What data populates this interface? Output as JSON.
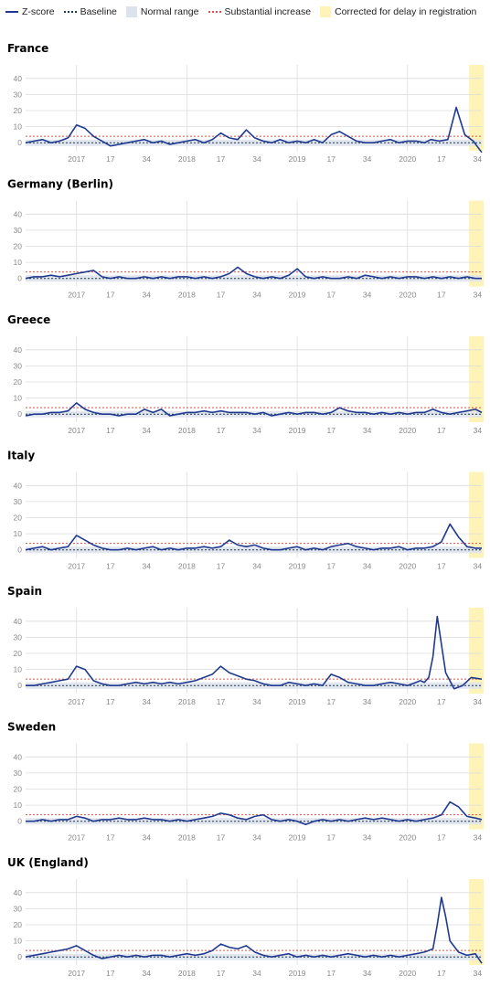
{
  "legend": {
    "zscore": "Z-score",
    "baseline": "Baseline",
    "normal_range": "Normal range",
    "substantial_increase": "Substantial increase",
    "corrected": "Corrected for delay in registration"
  },
  "colors": {
    "zscore": "#1f3a8f",
    "baseline": "#1b3a5a",
    "normal_range": "#dde3ec",
    "substantial": "#d9534f",
    "corrected": "#fff3b8",
    "grid": "#dcdcdc"
  },
  "chart_data": [
    {
      "type": "line",
      "title": "France",
      "yticks": [
        "40",
        "30",
        "20",
        "10",
        "0"
      ],
      "ylim": [
        -5,
        45
      ],
      "xticks": [
        "2017",
        "17",
        "34",
        "2018",
        "17",
        "34",
        "2019",
        "17",
        "34",
        "2020",
        "17",
        "34"
      ],
      "x": [
        0,
        4,
        8,
        12,
        16,
        20,
        24,
        28,
        32,
        36,
        40,
        44,
        48,
        52,
        56,
        60,
        64,
        68,
        72,
        76,
        80,
        84,
        88,
        92,
        96,
        100,
        104,
        108,
        112,
        116,
        120,
        124,
        128,
        132,
        136,
        140,
        144,
        148,
        152,
        156,
        160,
        164,
        168,
        172,
        176,
        180,
        184,
        188,
        191,
        195,
        199,
        203,
        207,
        211,
        215
      ],
      "series": [
        {
          "values": [
            0,
            1,
            2,
            0,
            1,
            3,
            11,
            9,
            4,
            1,
            -2,
            -1,
            0,
            1,
            2,
            0,
            1,
            -1,
            0,
            1,
            2,
            0,
            2,
            6,
            3,
            2,
            8,
            3,
            1,
            0,
            2,
            0,
            1,
            0,
            2,
            0,
            5,
            7,
            4,
            1,
            0,
            0,
            1,
            2,
            0,
            1,
            1,
            0,
            2,
            1,
            2,
            22,
            5,
            1,
            -6
          ]
        }
      ]
    },
    {
      "type": "line",
      "title": "Germany (Berlin)",
      "yticks": [
        "40",
        "30",
        "20",
        "10",
        "0"
      ],
      "ylim": [
        -5,
        45
      ],
      "xticks": [
        "2017",
        "17",
        "34",
        "2018",
        "17",
        "34",
        "2019",
        "17",
        "34",
        "2020",
        "17",
        "34"
      ],
      "x": [
        0,
        4,
        8,
        12,
        16,
        20,
        24,
        28,
        32,
        36,
        40,
        44,
        48,
        52,
        56,
        60,
        64,
        68,
        72,
        76,
        80,
        84,
        88,
        92,
        96,
        100,
        104,
        108,
        112,
        116,
        120,
        124,
        128,
        132,
        136,
        140,
        144,
        148,
        152,
        156,
        160,
        164,
        168,
        172,
        176,
        180,
        184,
        188,
        192,
        196,
        200,
        204,
        208,
        212,
        215
      ],
      "series": [
        {
          "values": [
            0,
            1,
            1,
            2,
            1,
            2,
            3,
            4,
            5,
            1,
            0,
            1,
            0,
            0,
            1,
            0,
            1,
            0,
            1,
            1,
            0,
            1,
            0,
            1,
            3,
            7,
            3,
            1,
            0,
            1,
            0,
            2,
            6,
            1,
            0,
            1,
            0,
            0,
            1,
            0,
            2,
            1,
            0,
            1,
            0,
            1,
            1,
            0,
            1,
            0,
            1,
            0,
            1,
            0,
            0
          ]
        }
      ]
    },
    {
      "type": "line",
      "title": "Greece",
      "yticks": [
        "40",
        "30",
        "20",
        "10",
        "0"
      ],
      "ylim": [
        -5,
        45
      ],
      "xticks": [
        "2017",
        "17",
        "34",
        "2018",
        "17",
        "34",
        "2019",
        "17",
        "34",
        "2020",
        "17",
        "34"
      ],
      "x": [
        0,
        4,
        8,
        12,
        16,
        20,
        24,
        28,
        32,
        36,
        40,
        44,
        48,
        52,
        56,
        60,
        64,
        68,
        72,
        76,
        80,
        84,
        88,
        92,
        96,
        100,
        104,
        108,
        112,
        116,
        120,
        124,
        128,
        132,
        136,
        140,
        144,
        148,
        152,
        156,
        160,
        164,
        168,
        172,
        176,
        180,
        184,
        188,
        192,
        196,
        200,
        204,
        208,
        212,
        215
      ],
      "series": [
        {
          "values": [
            -1,
            0,
            0,
            1,
            1,
            2,
            7,
            3,
            1,
            0,
            0,
            -1,
            0,
            0,
            3,
            1,
            3,
            -1,
            0,
            1,
            1,
            2,
            1,
            2,
            1,
            1,
            1,
            0,
            1,
            -1,
            0,
            1,
            0,
            1,
            1,
            0,
            1,
            4,
            2,
            1,
            1,
            0,
            1,
            0,
            1,
            0,
            1,
            1,
            3,
            1,
            0,
            1,
            2,
            3,
            1
          ]
        }
      ]
    },
    {
      "type": "line",
      "title": "Italy",
      "yticks": [
        "40",
        "30",
        "20",
        "10",
        "0"
      ],
      "ylim": [
        -5,
        45
      ],
      "xticks": [
        "2017",
        "17",
        "34",
        "2018",
        "17",
        "34",
        "2019",
        "17",
        "34",
        "2020",
        "17",
        "34"
      ],
      "x": [
        0,
        4,
        8,
        12,
        16,
        20,
        24,
        28,
        32,
        36,
        40,
        44,
        48,
        52,
        56,
        60,
        64,
        68,
        72,
        76,
        80,
        84,
        88,
        92,
        96,
        100,
        104,
        108,
        112,
        116,
        120,
        124,
        128,
        132,
        136,
        140,
        144,
        148,
        152,
        156,
        160,
        164,
        168,
        172,
        176,
        180,
        184,
        188,
        192,
        196,
        200,
        204,
        208,
        212,
        215
      ],
      "series": [
        {
          "values": [
            0,
            1,
            2,
            0,
            1,
            2,
            9,
            6,
            3,
            1,
            0,
            0,
            1,
            0,
            1,
            2,
            0,
            1,
            0,
            1,
            1,
            2,
            1,
            2,
            6,
            3,
            2,
            3,
            1,
            0,
            0,
            1,
            2,
            0,
            1,
            0,
            2,
            3,
            4,
            2,
            1,
            0,
            1,
            1,
            2,
            0,
            1,
            1,
            2,
            5,
            16,
            8,
            2,
            1,
            1
          ]
        }
      ]
    },
    {
      "type": "line",
      "title": "Spain",
      "yticks": [
        "40",
        "30",
        "20",
        "10",
        "0"
      ],
      "ylim": [
        -5,
        45
      ],
      "xticks": [
        "2017",
        "17",
        "34",
        "2018",
        "17",
        "34",
        "2019",
        "17",
        "34",
        "2020",
        "17",
        "34"
      ],
      "x": [
        0,
        4,
        8,
        12,
        16,
        20,
        24,
        28,
        32,
        36,
        40,
        44,
        48,
        52,
        56,
        60,
        64,
        68,
        72,
        76,
        80,
        84,
        88,
        92,
        96,
        98,
        100,
        102,
        104,
        108,
        112,
        116,
        120,
        124,
        128,
        132,
        136,
        140,
        144,
        148,
        152,
        156,
        160,
        164,
        168,
        172,
        176,
        180,
        184,
        186,
        188,
        190,
        192,
        194,
        198,
        202,
        206,
        210,
        215
      ],
      "series": [
        {
          "values": [
            0,
            0,
            1,
            2,
            3,
            4,
            12,
            10,
            3,
            1,
            0,
            0,
            1,
            2,
            1,
            2,
            1,
            2,
            1,
            2,
            3,
            5,
            7,
            12,
            8,
            7,
            6,
            5,
            4,
            3,
            1,
            0,
            0,
            2,
            1,
            0,
            1,
            0,
            7,
            5,
            2,
            1,
            0,
            0,
            1,
            2,
            1,
            0,
            2,
            3,
            2,
            5,
            18,
            43,
            8,
            -2,
            0,
            5,
            4
          ]
        }
      ]
    },
    {
      "type": "line",
      "title": "Sweden",
      "yticks": [
        "40",
        "30",
        "20",
        "10",
        "0"
      ],
      "ylim": [
        -5,
        45
      ],
      "xticks": [
        "2017",
        "17",
        "34",
        "2018",
        "17",
        "34",
        "2019",
        "17",
        "34",
        "2020",
        "17",
        "34"
      ],
      "x": [
        0,
        4,
        8,
        12,
        16,
        20,
        24,
        28,
        32,
        36,
        40,
        44,
        48,
        52,
        56,
        60,
        64,
        68,
        72,
        76,
        80,
        84,
        88,
        92,
        96,
        100,
        104,
        108,
        112,
        116,
        120,
        124,
        128,
        132,
        136,
        140,
        144,
        148,
        152,
        156,
        160,
        164,
        168,
        172,
        176,
        180,
        184,
        188,
        192,
        196,
        200,
        204,
        208,
        212,
        215
      ],
      "series": [
        {
          "values": [
            0,
            0,
            1,
            0,
            1,
            1,
            3,
            2,
            0,
            1,
            1,
            2,
            1,
            1,
            2,
            1,
            1,
            0,
            1,
            0,
            1,
            2,
            3,
            5,
            4,
            2,
            1,
            3,
            4,
            1,
            0,
            1,
            0,
            -2,
            0,
            1,
            0,
            1,
            0,
            1,
            2,
            1,
            2,
            1,
            0,
            1,
            0,
            1,
            2,
            4,
            12,
            9,
            3,
            2,
            1
          ]
        }
      ]
    },
    {
      "type": "line",
      "title": "UK (England)",
      "yticks": [
        "40",
        "30",
        "20",
        "10",
        "0"
      ],
      "ylim": [
        -5,
        45
      ],
      "xticks": [
        "2017",
        "17",
        "34",
        "2018",
        "17",
        "34",
        "2019",
        "17",
        "34",
        "2020",
        "17",
        "34"
      ],
      "x": [
        0,
        4,
        8,
        12,
        16,
        20,
        24,
        28,
        32,
        36,
        40,
        44,
        48,
        52,
        56,
        60,
        64,
        68,
        72,
        76,
        80,
        84,
        88,
        92,
        96,
        100,
        104,
        108,
        112,
        116,
        120,
        124,
        128,
        132,
        136,
        140,
        144,
        148,
        152,
        156,
        160,
        164,
        168,
        172,
        176,
        180,
        184,
        188,
        192,
        194,
        196,
        198,
        200,
        204,
        208,
        212,
        215
      ],
      "series": [
        {
          "values": [
            0,
            1,
            2,
            3,
            4,
            5,
            7,
            4,
            1,
            -1,
            0,
            1,
            0,
            1,
            0,
            1,
            1,
            0,
            1,
            2,
            1,
            2,
            4,
            8,
            6,
            5,
            7,
            3,
            1,
            0,
            1,
            2,
            0,
            1,
            0,
            1,
            0,
            1,
            2,
            1,
            0,
            1,
            0,
            1,
            0,
            1,
            2,
            3,
            5,
            20,
            37,
            25,
            10,
            3,
            1,
            2,
            -4
          ]
        }
      ]
    }
  ]
}
